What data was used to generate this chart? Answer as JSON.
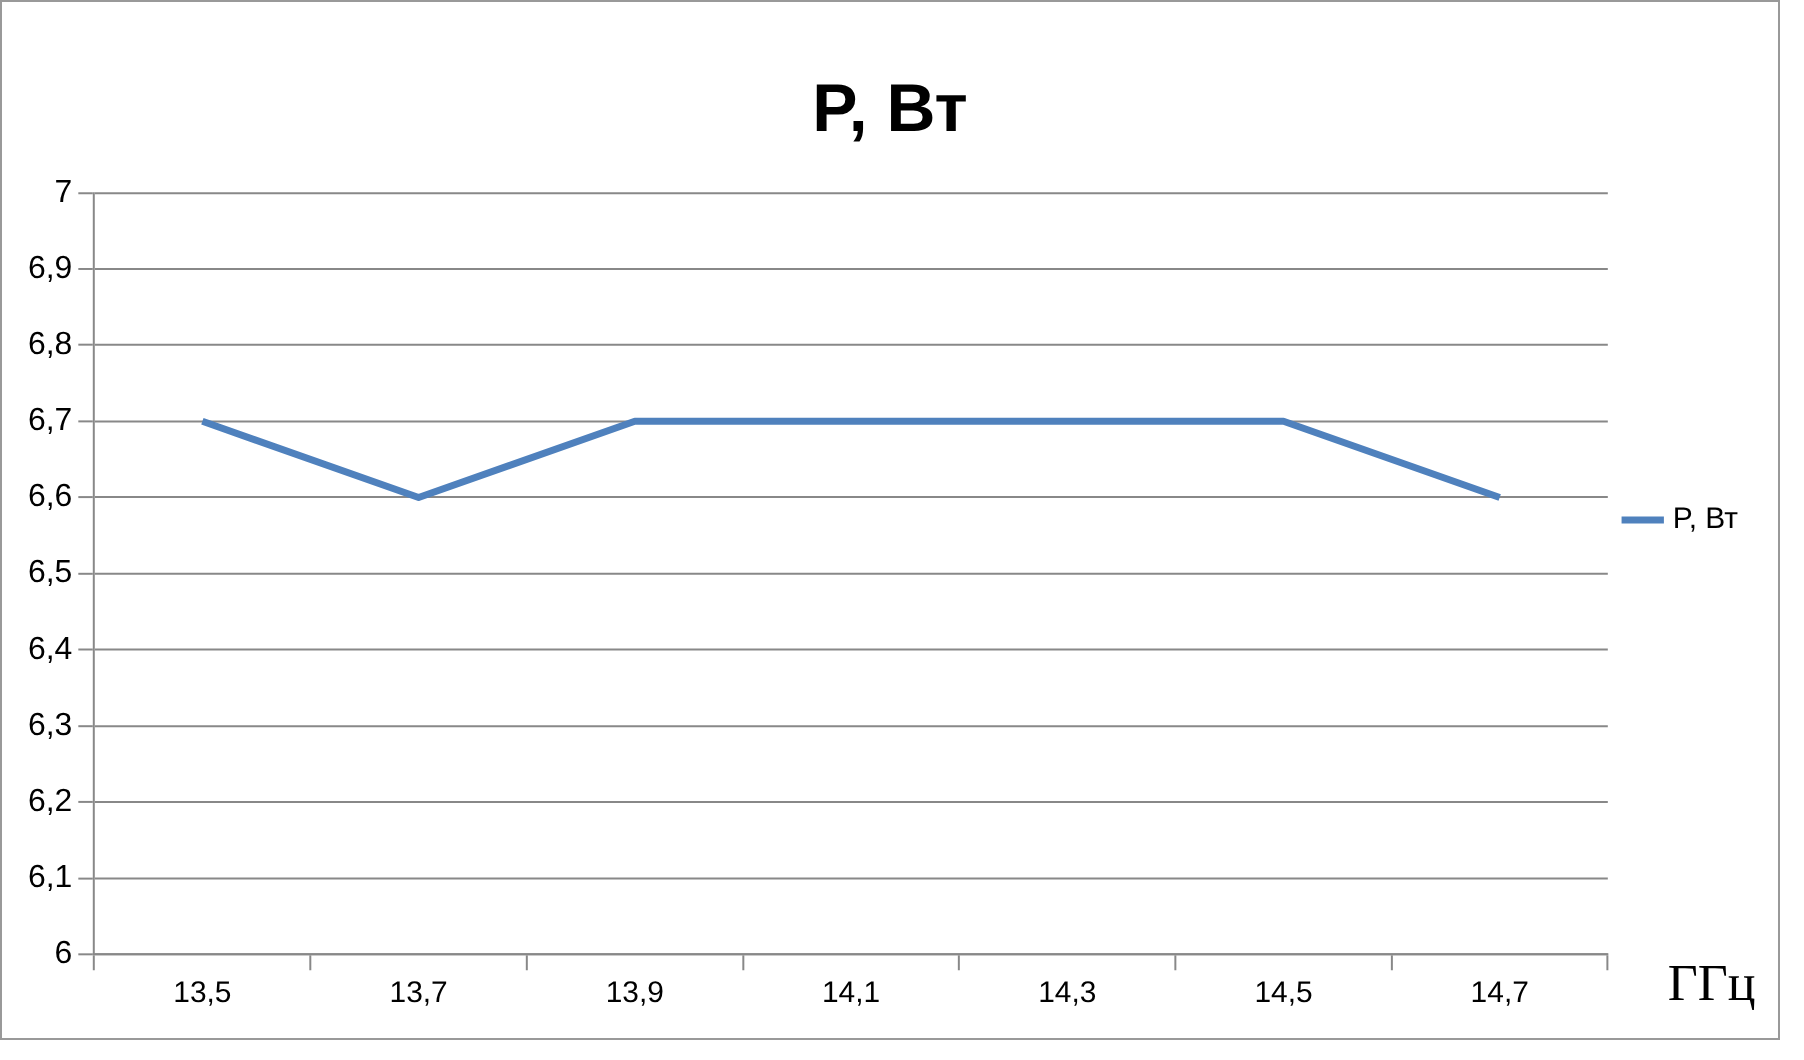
{
  "chart_data": {
    "type": "line",
    "title": "P, Вт",
    "xlabel": "ГГц",
    "categories": [
      "13,5",
      "13,7",
      "13,9",
      "14,1",
      "14,3",
      "14,5",
      "14,7"
    ],
    "series": [
      {
        "name": "P, Вт",
        "color": "#4f81bd",
        "values": [
          6.7,
          6.6,
          6.7,
          6.7,
          6.7,
          6.7,
          6.6
        ]
      }
    ],
    "ylim": [
      6,
      7
    ],
    "yticks": [
      {
        "value": 6,
        "label": "6"
      },
      {
        "value": 6.1,
        "label": "6,1"
      },
      {
        "value": 6.2,
        "label": "6,2"
      },
      {
        "value": 6.3,
        "label": "6,3"
      },
      {
        "value": 6.4,
        "label": "6,4"
      },
      {
        "value": 6.5,
        "label": "6,5"
      },
      {
        "value": 6.6,
        "label": "6,6"
      },
      {
        "value": 6.7,
        "label": "6,7"
      },
      {
        "value": 6.8,
        "label": "6,8"
      },
      {
        "value": 6.9,
        "label": "6,9"
      },
      {
        "value": 7,
        "label": "7"
      }
    ],
    "grid": "y",
    "legend": "right",
    "marker": "none",
    "line_style": "solid"
  }
}
